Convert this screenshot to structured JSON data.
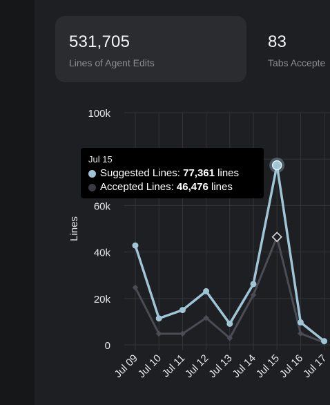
{
  "stats": [
    {
      "value": "531,705",
      "label": "Lines of Agent Edits"
    },
    {
      "value": "83",
      "label": "Tabs Accepte"
    }
  ],
  "tooltip": {
    "title": "Jul 15",
    "rows": [
      {
        "series": "Suggested Lines",
        "value": "77,361",
        "unit": "lines",
        "color": "#9fc5d6"
      },
      {
        "series": "Accepted Lines",
        "value": "46,476",
        "unit": "lines",
        "color": "#3a3b42"
      }
    ]
  },
  "colors": {
    "suggested": "#9fc5d6",
    "accepted": "#4b4c55",
    "grid": "#34353a",
    "axis_text": "#e8e8ea"
  },
  "chart_data": {
    "type": "line",
    "ylabel": "Lines",
    "ylim": [
      0,
      100000
    ],
    "yticks": [
      0,
      20000,
      40000,
      60000,
      80000,
      100000
    ],
    "ytick_labels": [
      "0",
      "20k",
      "40k",
      "60k",
      "80k",
      "100k"
    ],
    "categories": [
      "Jul 09",
      "Jul 10",
      "Jul 11",
      "Jul 12",
      "Jul 13",
      "Jul 14",
      "Jul 15",
      "Jul 16",
      "Jul 17"
    ],
    "grid": true,
    "highlight_index": 6,
    "series": [
      {
        "name": "Suggested Lines",
        "values": [
          42800,
          11400,
          15000,
          23100,
          9100,
          26200,
          77361,
          9700,
          1600
        ]
      },
      {
        "name": "Accepted Lines",
        "values": [
          24700,
          4800,
          4800,
          11600,
          2900,
          21500,
          46476,
          4900,
          1000
        ]
      }
    ]
  }
}
